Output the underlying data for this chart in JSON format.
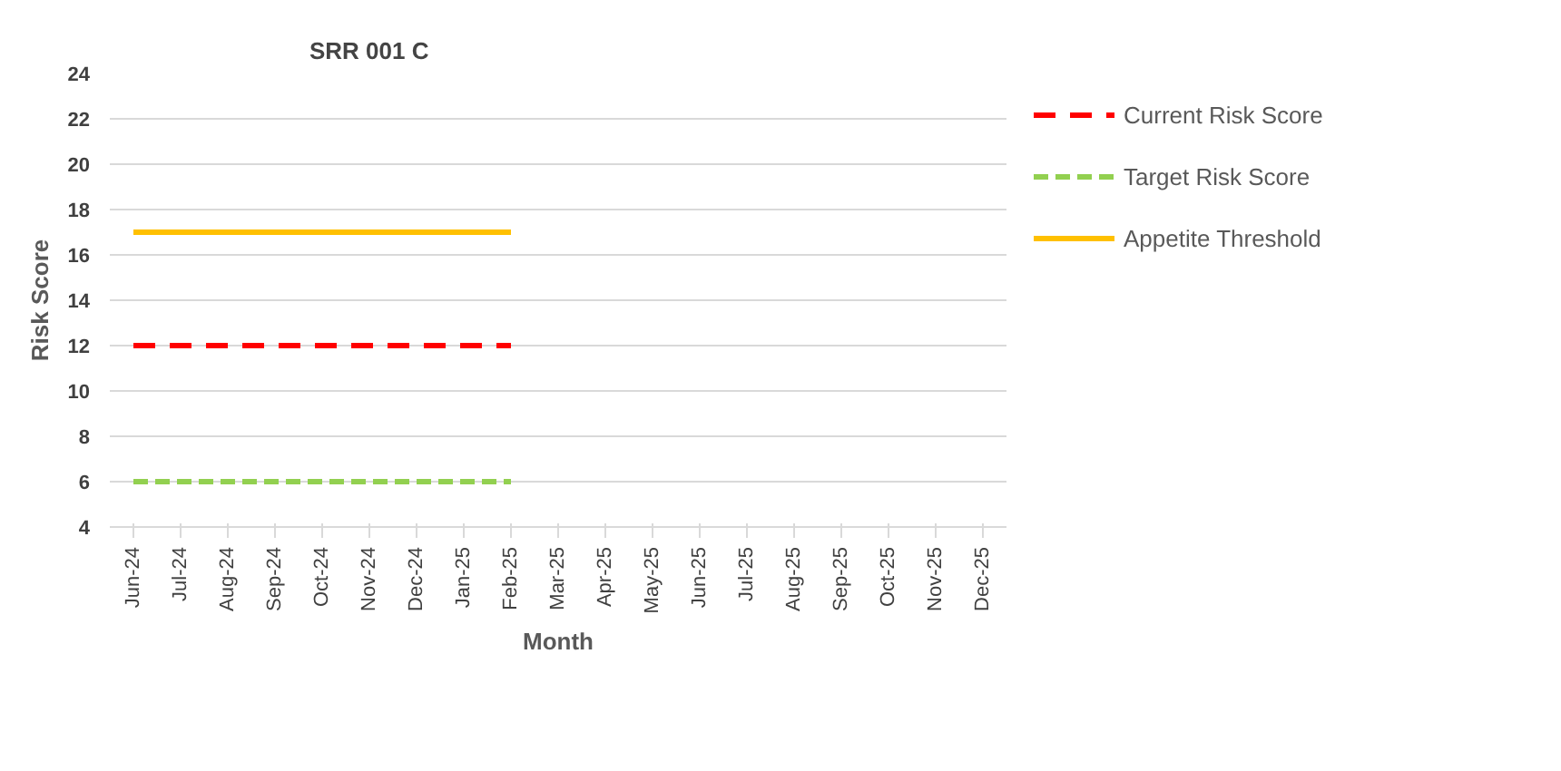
{
  "chart_data": {
    "type": "line",
    "title": "SRR 001 C",
    "xlabel": "Month",
    "ylabel": "Risk Score",
    "categories": [
      "Jun-24",
      "Jul-24",
      "Aug-24",
      "Sep-24",
      "Oct-24",
      "Nov-24",
      "Dec-24",
      "Jan-25",
      "Feb-25",
      "Mar-25",
      "Apr-25",
      "May-25",
      "Jun-25",
      "Jul-25",
      "Aug-25",
      "Sep-25",
      "Oct-25",
      "Nov-25",
      "Dec-25"
    ],
    "series": [
      {
        "name": "Current Risk Score",
        "color": "#ff0000",
        "line_style": "dashed",
        "values": [
          12,
          12,
          12,
          12,
          12,
          12,
          12,
          12,
          12,
          null,
          null,
          null,
          null,
          null,
          null,
          null,
          null,
          null,
          null
        ]
      },
      {
        "name": "Target Risk Score",
        "color": "#92d050",
        "line_style": "dotted",
        "values": [
          6,
          6,
          6,
          6,
          6,
          6,
          6,
          6,
          6,
          null,
          null,
          null,
          null,
          null,
          null,
          null,
          null,
          null,
          null
        ]
      },
      {
        "name": "Appetite Threshold",
        "color": "#ffc000",
        "line_style": "solid",
        "values": [
          17,
          17,
          17,
          17,
          17,
          17,
          17,
          17,
          17,
          null,
          null,
          null,
          null,
          null,
          null,
          null,
          null,
          null,
          null
        ]
      }
    ],
    "ylim": [
      4,
      24
    ],
    "yticks": [
      4,
      6,
      8,
      10,
      12,
      14,
      16,
      18,
      20,
      22,
      24
    ],
    "grid": "y",
    "legend": "right",
    "marker": "none"
  }
}
